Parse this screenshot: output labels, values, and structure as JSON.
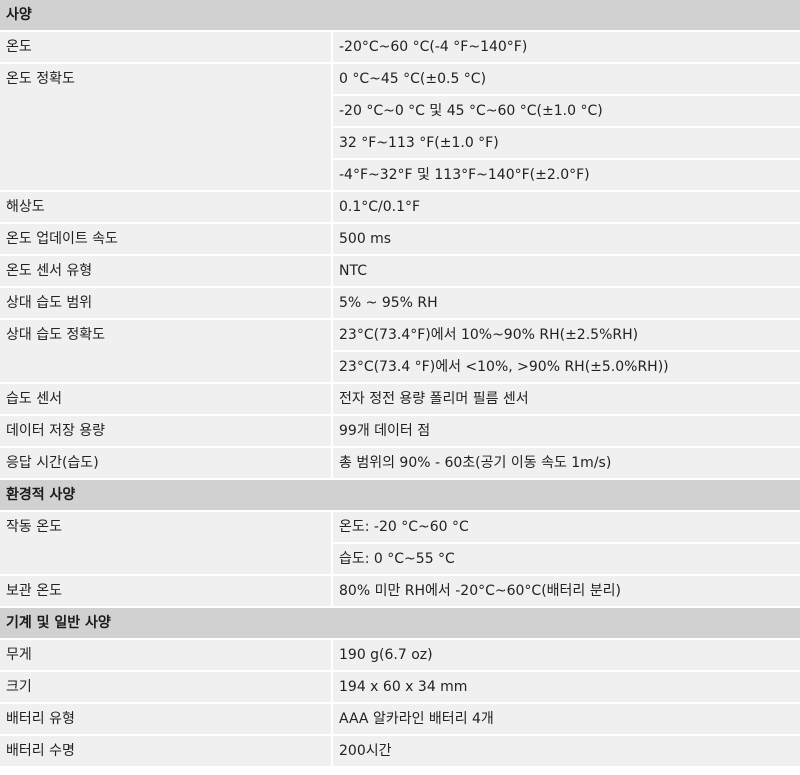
{
  "sections": {
    "spec": {
      "title": "사양",
      "rows": [
        {
          "label": "온도",
          "values": [
            "-20°C~60 °C(-4 °F~140°F)"
          ]
        },
        {
          "label": "온도 정확도",
          "values": [
            "0 °C~45 °C(±0.5 °C)",
            "-20 °C~0 °C 및 45 °C~60 °C(±1.0 °C)",
            "32 °F~113 °F(±1.0 °F)",
            "-4°F~32°F 및 113°F~140°F(±2.0°F)"
          ]
        },
        {
          "label": "해상도",
          "values": [
            "0.1°C/0.1°F"
          ]
        },
        {
          "label": "온도 업데이트 속도",
          "values": [
            "500 ms"
          ]
        },
        {
          "label": "온도 센서 유형",
          "values": [
            "NTC"
          ]
        },
        {
          "label": "상대 습도 범위",
          "values": [
            "5% ~ 95% RH"
          ]
        },
        {
          "label": "상대 습도 정확도",
          "values": [
            "23°C(73.4°F)에서 10%~90% RH(±2.5%RH)",
            "23°C(73.4 °F)에서 <10%, >90% RH(±5.0%RH))"
          ]
        },
        {
          "label": "습도 센서",
          "values": [
            "전자 정전 용량 폴리머 필름 센서"
          ]
        },
        {
          "label": "데이터 저장 용량",
          "values": [
            "99개 데이터 점"
          ]
        },
        {
          "label": "응답 시간(습도)",
          "values": [
            "총 범위의 90% - 60초(공기 이동 속도 1m/s)"
          ]
        }
      ]
    },
    "environment": {
      "title": "환경적 사양",
      "rows": [
        {
          "label": "작동 온도",
          "values": [
            "온도: -20 °C~60 °C",
            "습도: 0 °C~55 °C"
          ]
        },
        {
          "label": "보관 온도",
          "values": [
            "80% 미만 RH에서 -20°C~60°C(배터리 분리)"
          ]
        }
      ]
    },
    "mechanical": {
      "title": "기계 및 일반 사양",
      "rows": [
        {
          "label": "무게",
          "values": [
            "190 g(6.7 oz)"
          ]
        },
        {
          "label": "크기",
          "values": [
            "194 x 60 x 34 mm"
          ]
        },
        {
          "label": "배터리 유형",
          "values": [
            "AAA 알카라인 배터리 4개"
          ]
        },
        {
          "label": "배터리 수명",
          "values": [
            "200시간"
          ]
        }
      ]
    }
  }
}
